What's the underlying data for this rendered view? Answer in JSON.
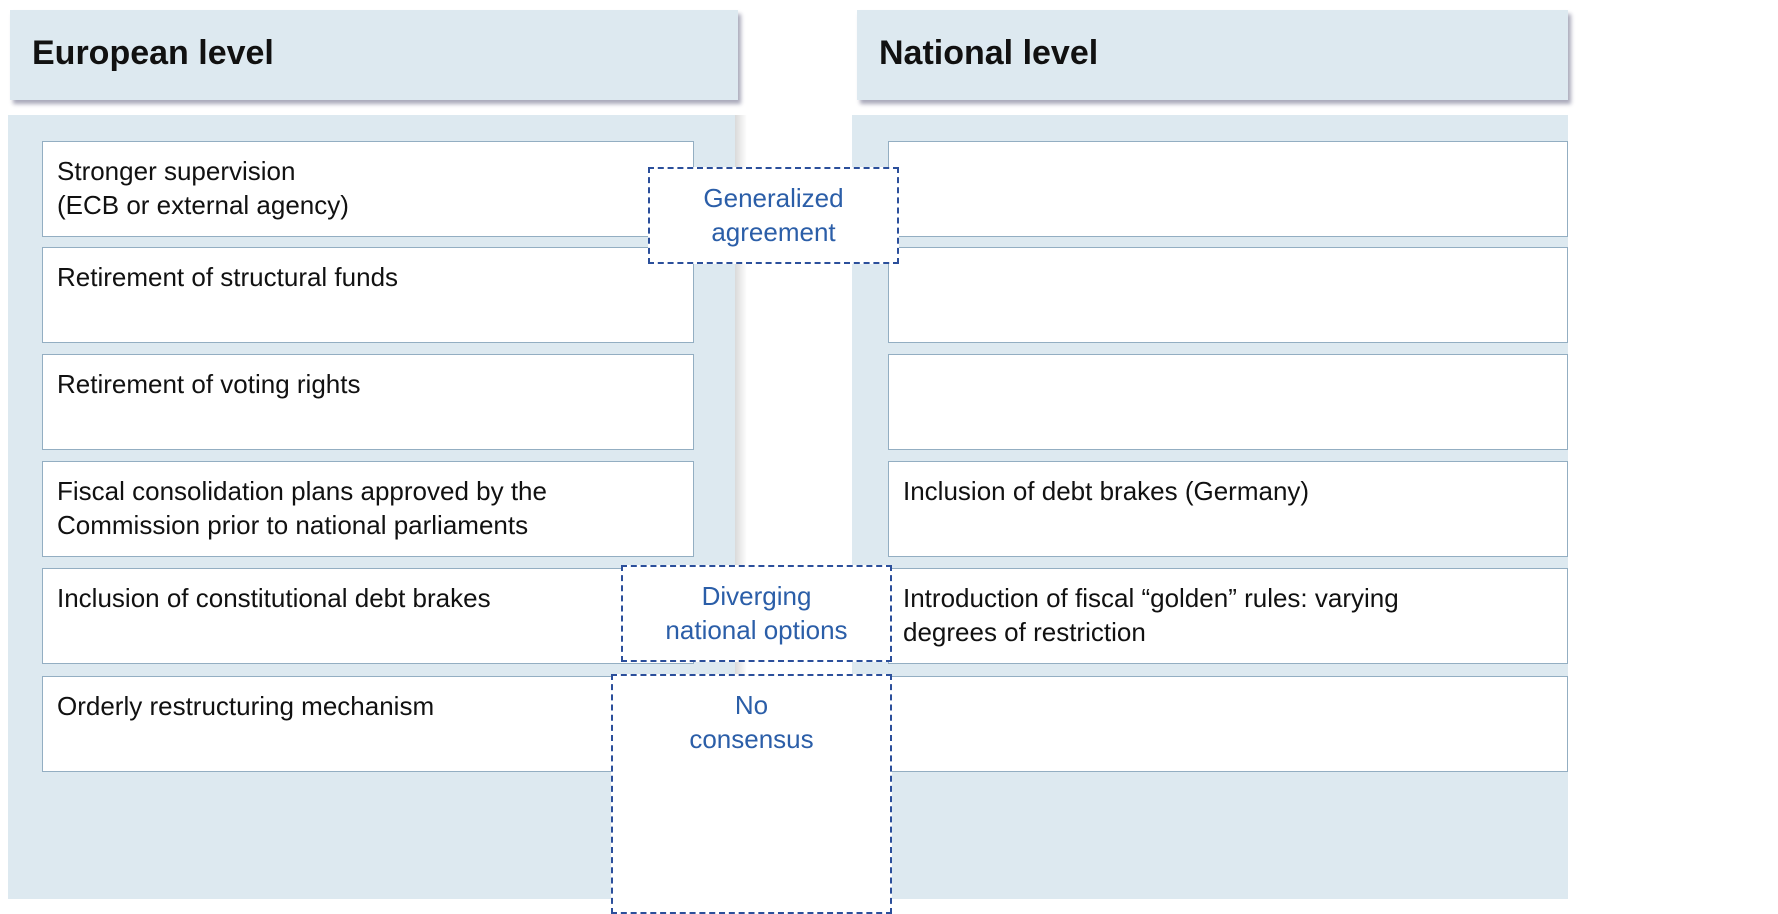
{
  "columns": [
    {
      "title": "European level",
      "items": [
        "Stronger supervision\n(ECB or external agency)",
        "Retirement of structural funds",
        "Retirement of voting rights",
        "Fiscal consolidation plans approved by the\nCommission prior to national parliaments",
        "Inclusion of constitutional debt brakes",
        "Orderly restructuring mechanism"
      ]
    },
    {
      "title": "National level",
      "items": [
        "Inclusion of debt brakes (Germany)",
        "Introduction of fiscal “golden” rules: varying\ndegrees of restriction"
      ]
    }
  ],
  "labels": [
    "Generalized\nagreement",
    "Diverging\nnational options",
    "No\nconsensus"
  ]
}
